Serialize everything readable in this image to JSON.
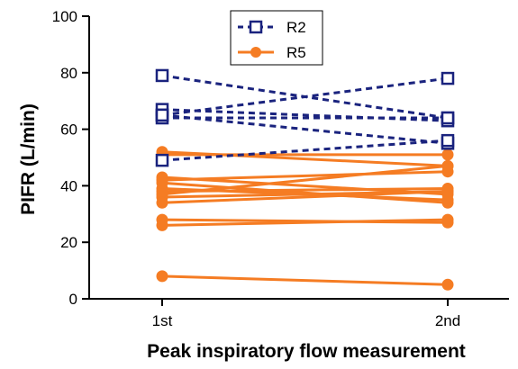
{
  "chart_data": {
    "type": "line",
    "xlabel": "Peak inspiratory flow measurement",
    "ylabel": "PIFR (L/min)",
    "categories": [
      "1st",
      "2nd"
    ],
    "ylim": [
      0,
      100
    ],
    "yticks": [
      0,
      20,
      40,
      60,
      80,
      100
    ],
    "grid": false,
    "legend_position": "top-center",
    "series": [
      {
        "name": "R2",
        "color": "#1a237e",
        "line_style": "dashed",
        "marker": "open-square",
        "pairs": [
          [
            79,
            64
          ],
          [
            67,
            63
          ],
          [
            65,
            55
          ],
          [
            64,
            64
          ],
          [
            49,
            56
          ],
          [
            65,
            78
          ]
        ]
      },
      {
        "name": "R5",
        "color": "#f57c23",
        "line_style": "solid",
        "marker": "filled-circle",
        "pairs": [
          [
            52,
            47
          ],
          [
            51,
            51
          ],
          [
            43,
            37
          ],
          [
            42,
            45
          ],
          [
            41,
            34
          ],
          [
            39,
            35
          ],
          [
            38,
            39
          ],
          [
            37,
            47
          ],
          [
            36,
            38
          ],
          [
            34,
            38
          ],
          [
            28,
            27
          ],
          [
            26,
            28
          ],
          [
            8,
            5
          ]
        ]
      }
    ]
  }
}
